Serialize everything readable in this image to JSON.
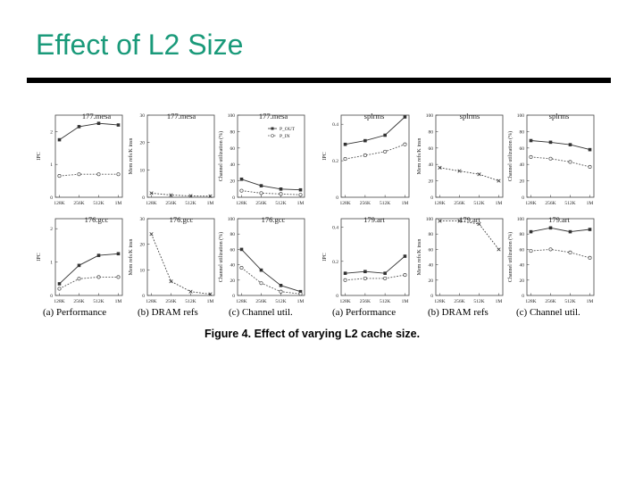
{
  "slide": {
    "title": "Effect of L2 Size"
  },
  "figure": {
    "caption": "Figure 4. Effect of varying L2 cache size.",
    "subcaptions": [
      "(a) Performance",
      "(b) DRAM refs",
      "(c) Channel util.",
      "(a) Performance",
      "(b) DRAM refs",
      "(c) Channel util."
    ],
    "legend": [
      "P_OUT",
      "P_IN"
    ]
  },
  "chart_data": [
    {
      "type": "line",
      "title": "177.mesa",
      "xlabel": "",
      "ylabel": "IPC",
      "categories": [
        "128K",
        "256K",
        "512K",
        "1M"
      ],
      "ylim": [
        0,
        2.5
      ],
      "yticks": [
        "0",
        "1",
        "2"
      ],
      "series": [
        {
          "name": "P_OUT",
          "values": [
            1.75,
            2.15,
            2.25,
            2.2
          ]
        },
        {
          "name": "P_IN",
          "values": [
            0.65,
            0.7,
            0.7,
            0.7
          ]
        }
      ]
    },
    {
      "type": "line",
      "title": "177.mesa",
      "xlabel": "",
      "ylabel": "Mem refs/K insn",
      "categories": [
        "128K",
        "256K",
        "512K",
        "1M"
      ],
      "ylim": [
        0,
        30
      ],
      "yticks": [
        "0",
        "10",
        "20",
        "30"
      ],
      "series": [
        {
          "name": "DRAM refs",
          "values": [
            1.5,
            0.8,
            0.5,
            0.4
          ]
        }
      ]
    },
    {
      "type": "line",
      "title": "177.mesa",
      "xlabel": "",
      "ylabel": "Channel utilization (%)",
      "categories": [
        "128K",
        "256K",
        "512K",
        "1M"
      ],
      "ylim": [
        0,
        100
      ],
      "yticks": [
        "0",
        "20",
        "40",
        "60",
        "80",
        "100"
      ],
      "series": [
        {
          "name": "P_OUT",
          "values": [
            22,
            14,
            10,
            9
          ]
        },
        {
          "name": "P_IN",
          "values": [
            8,
            5,
            4,
            3
          ]
        }
      ]
    },
    {
      "type": "line",
      "title": "splrms",
      "xlabel": "",
      "ylabel": "IPC",
      "categories": [
        "128K",
        "256K",
        "512K",
        "1M"
      ],
      "ylim": [
        0,
        0.45
      ],
      "yticks": [
        "0",
        "0.2",
        "0.4"
      ],
      "series": [
        {
          "name": "P_OUT",
          "values": [
            0.29,
            0.31,
            0.34,
            0.44
          ]
        },
        {
          "name": "P_IN",
          "values": [
            0.21,
            0.23,
            0.25,
            0.29
          ]
        }
      ]
    },
    {
      "type": "line",
      "title": "splrms",
      "xlabel": "",
      "ylabel": "Mem refs/K insn",
      "categories": [
        "128K",
        "256K",
        "512K",
        "1M"
      ],
      "ylim": [
        0,
        100
      ],
      "yticks": [
        "0",
        "20",
        "40",
        "60",
        "80",
        "100"
      ],
      "series": [
        {
          "name": "DRAM refs",
          "values": [
            36,
            32,
            28,
            20
          ]
        }
      ]
    },
    {
      "type": "line",
      "title": "splrms",
      "xlabel": "",
      "ylabel": "Channel utilization (%)",
      "categories": [
        "128K",
        "256K",
        "512K",
        "1M"
      ],
      "ylim": [
        0,
        100
      ],
      "yticks": [
        "0",
        "20",
        "40",
        "60",
        "80",
        "100"
      ],
      "series": [
        {
          "name": "P_OUT",
          "values": [
            69,
            67,
            64,
            58
          ]
        },
        {
          "name": "P_IN",
          "values": [
            49,
            47,
            43,
            37
          ]
        }
      ]
    },
    {
      "type": "line",
      "title": "176.gcc",
      "xlabel": "",
      "ylabel": "IPC",
      "categories": [
        "128K",
        "256K",
        "512K",
        "1M"
      ],
      "ylim": [
        0,
        2.3
      ],
      "yticks": [
        "0",
        "1",
        "2"
      ],
      "series": [
        {
          "name": "P_OUT",
          "values": [
            0.35,
            0.9,
            1.2,
            1.25
          ]
        },
        {
          "name": "P_IN",
          "values": [
            0.2,
            0.5,
            0.55,
            0.55
          ]
        }
      ]
    },
    {
      "type": "line",
      "title": "176.gcc",
      "xlabel": "",
      "ylabel": "Mem refs/K insn",
      "categories": [
        "128K",
        "256K",
        "512K",
        "1M"
      ],
      "ylim": [
        0,
        30
      ],
      "yticks": [
        "0",
        "10",
        "20",
        "30"
      ],
      "series": [
        {
          "name": "DRAM refs",
          "values": [
            24,
            5.5,
            1.5,
            0.5
          ]
        }
      ]
    },
    {
      "type": "line",
      "title": "176.gcc",
      "xlabel": "",
      "ylabel": "Channel utilization (%)",
      "categories": [
        "128K",
        "256K",
        "512K",
        "1M"
      ],
      "ylim": [
        0,
        100
      ],
      "yticks": [
        "0",
        "20",
        "40",
        "60",
        "80",
        "100"
      ],
      "series": [
        {
          "name": "P_OUT",
          "values": [
            60,
            33,
            13,
            5
          ]
        },
        {
          "name": "P_IN",
          "values": [
            36,
            16,
            5,
            2
          ]
        }
      ]
    },
    {
      "type": "line",
      "title": "179.art",
      "xlabel": "",
      "ylabel": "IPC",
      "categories": [
        "128K",
        "256K",
        "512K",
        "1M"
      ],
      "ylim": [
        0,
        0.45
      ],
      "yticks": [
        "0",
        "0.2",
        "0.4"
      ],
      "series": [
        {
          "name": "P_OUT",
          "values": [
            0.13,
            0.14,
            0.13,
            0.23
          ]
        },
        {
          "name": "P_IN",
          "values": [
            0.09,
            0.1,
            0.1,
            0.12
          ]
        }
      ]
    },
    {
      "type": "line",
      "title": "179.art",
      "xlabel": "",
      "ylabel": "Mem refs/K insn",
      "categories": [
        "128K",
        "256K",
        "512K",
        "1M"
      ],
      "ylim": [
        0,
        100
      ],
      "yticks": [
        "0",
        "20",
        "40",
        "60",
        "80",
        "100"
      ],
      "series": [
        {
          "name": "DRAM refs",
          "values": [
            97,
            97,
            93,
            60
          ]
        }
      ]
    },
    {
      "type": "line",
      "title": "179.art",
      "xlabel": "",
      "ylabel": "Channel utilization (%)",
      "categories": [
        "128K",
        "256K",
        "512K",
        "1M"
      ],
      "ylim": [
        0,
        100
      ],
      "yticks": [
        "0",
        "20",
        "40",
        "60",
        "80",
        "100"
      ],
      "series": [
        {
          "name": "P_OUT",
          "values": [
            83,
            88,
            83,
            86
          ]
        },
        {
          "name": "P_IN",
          "values": [
            58,
            60,
            56,
            49
          ]
        }
      ]
    }
  ]
}
